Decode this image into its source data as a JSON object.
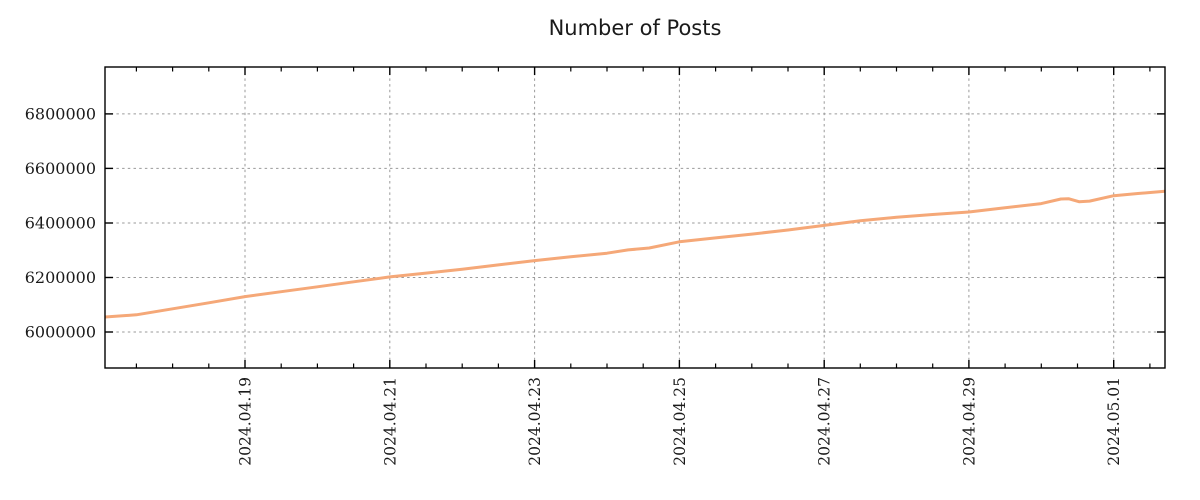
{
  "chart_data": {
    "type": "line",
    "title": "Number of Posts",
    "grid_color": "#9a9a9a",
    "axis_color": "#000000",
    "text_color": "#1a1a1a",
    "legend": "none",
    "grid": "on",
    "x_axis": {
      "range": [
        "2024-04-17T01:35",
        "2024-05-01T17:00"
      ],
      "major_ticks": [
        {
          "date": "2024-04-19T00:00",
          "label": "2024.04.19"
        },
        {
          "date": "2024-04-21T00:00",
          "label": "2024.04.21"
        },
        {
          "date": "2024-04-23T00:00",
          "label": "2024.04.23"
        },
        {
          "date": "2024-04-25T00:00",
          "label": "2024.04.25"
        },
        {
          "date": "2024-04-27T00:00",
          "label": "2024.04.27"
        },
        {
          "date": "2024-04-29T00:00",
          "label": "2024.04.29"
        },
        {
          "date": "2024-05-01T00:00",
          "label": "2024.05.01"
        }
      ],
      "minor_tick_interval_hours": 12
    },
    "y_axis": {
      "range": [
        5868000,
        6972000
      ],
      "ticks": [
        {
          "value": 6000000,
          "label": "6000000"
        },
        {
          "value": 6200000,
          "label": "6200000"
        },
        {
          "value": 6400000,
          "label": "6400000"
        },
        {
          "value": 6600000,
          "label": "6600000"
        },
        {
          "value": 6800000,
          "label": "6800000"
        }
      ]
    },
    "series": [
      {
        "name": "number-of-posts",
        "color": "#F5A878",
        "points": [
          [
            "2024-04-17T01:35",
            6055000
          ],
          [
            "2024-04-17T12:00",
            6063000
          ],
          [
            "2024-04-18T00:00",
            6085000
          ],
          [
            "2024-04-18T12:00",
            6107000
          ],
          [
            "2024-04-19T00:00",
            6130000
          ],
          [
            "2024-04-19T12:00",
            6148000
          ],
          [
            "2024-04-20T00:00",
            6166000
          ],
          [
            "2024-04-20T12:00",
            6184000
          ],
          [
            "2024-04-21T00:00",
            6202000
          ],
          [
            "2024-04-21T12:00",
            6216000
          ],
          [
            "2024-04-22T00:00",
            6230000
          ],
          [
            "2024-04-22T12:00",
            6246000
          ],
          [
            "2024-04-23T00:00",
            6262000
          ],
          [
            "2024-04-23T12:00",
            6276000
          ],
          [
            "2024-04-24T00:00",
            6289000
          ],
          [
            "2024-04-24T07:00",
            6301000
          ],
          [
            "2024-04-24T14:00",
            6308000
          ],
          [
            "2024-04-25T00:00",
            6331000
          ],
          [
            "2024-04-25T12:00",
            6345000
          ],
          [
            "2024-04-26T00:00",
            6359000
          ],
          [
            "2024-04-26T12:00",
            6374000
          ],
          [
            "2024-04-27T00:00",
            6391000
          ],
          [
            "2024-04-27T12:00",
            6408000
          ],
          [
            "2024-04-28T00:00",
            6421000
          ],
          [
            "2024-04-28T12:00",
            6431000
          ],
          [
            "2024-04-29T00:00",
            6440000
          ],
          [
            "2024-04-29T12:00",
            6456000
          ],
          [
            "2024-04-30T00:00",
            6471000
          ],
          [
            "2024-04-30T06:30",
            6488000
          ],
          [
            "2024-04-30T09:00",
            6489000
          ],
          [
            "2024-04-30T12:30",
            6478000
          ],
          [
            "2024-04-30T16:00",
            6480000
          ],
          [
            "2024-05-01T00:00",
            6500000
          ],
          [
            "2024-05-01T08:00",
            6508000
          ],
          [
            "2024-05-01T17:00",
            6516000
          ]
        ]
      }
    ]
  }
}
